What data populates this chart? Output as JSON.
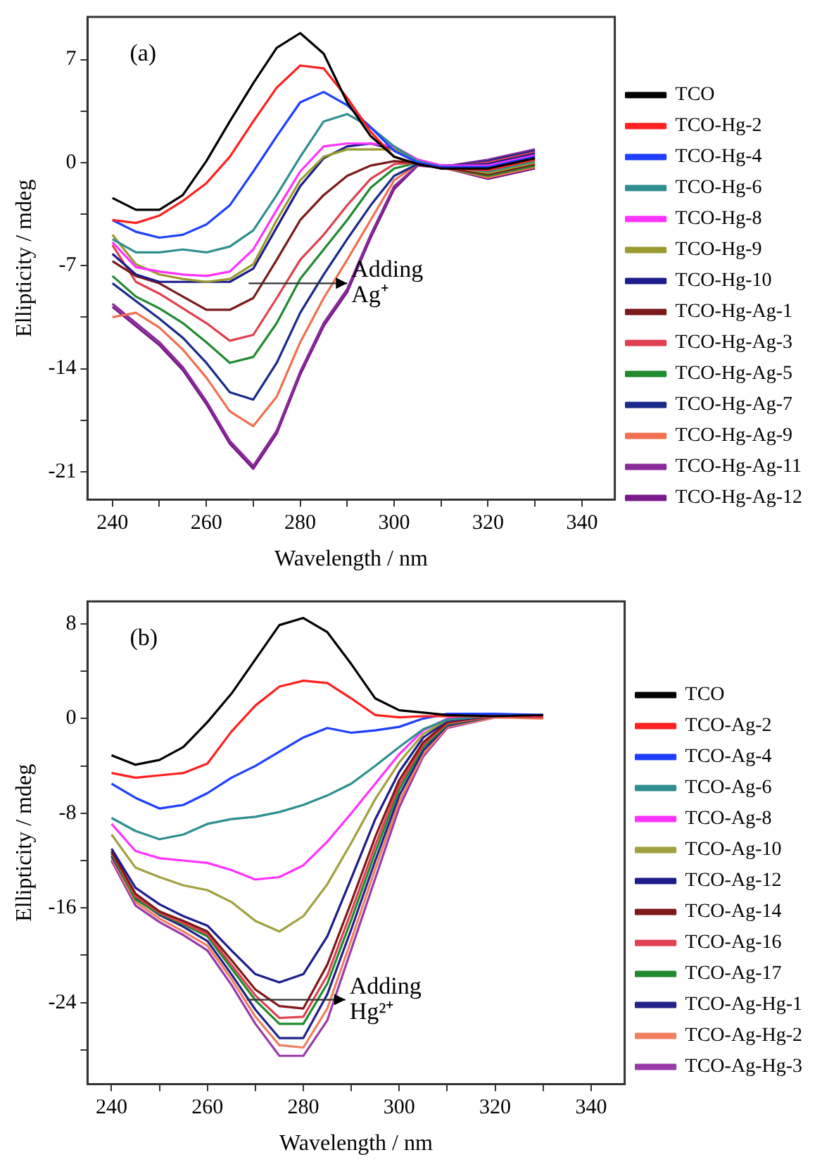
{
  "chart_data": [
    {
      "type": "line",
      "xlabel": "Wavelength / nm",
      "ylabel": "Ellipticity / mdeg",
      "annotations": [
        "(a)",
        {
          "text": "Adding Ag⁺",
          "x": 290,
          "y": -8.2
        }
      ],
      "x": [
        240,
        245,
        250,
        255,
        260,
        265,
        270,
        275,
        280,
        285,
        290,
        295,
        300,
        305,
        310,
        320,
        330
      ],
      "xlim": [
        234.7,
        347
      ],
      "xticks": [
        240,
        {
          "value": 250,
          "label": null
        },
        260,
        {
          "value": 270,
          "label": null
        },
        280,
        {
          "value": 290,
          "label": null
        },
        300,
        {
          "value": 310,
          "label": null
        },
        320,
        {
          "value": 330,
          "label": null
        },
        340
      ],
      "ylim": [
        -22.9,
        9.9
      ],
      "yticks": [
        -21,
        {
          "value": -17.5,
          "label": null
        },
        -14,
        {
          "value": -10.5,
          "label": null
        },
        -7,
        {
          "value": -3.5,
          "label": null
        },
        0,
        {
          "value": 3.5,
          "label": null
        },
        7
      ],
      "grid": false,
      "legend": "right",
      "marker": "none",
      "line_style": "solid",
      "series": [
        {
          "name": "TCO",
          "color": "#000000",
          "values": [
            -2.4,
            -3.2,
            -3.2,
            -2.2,
            0.1,
            2.8,
            5.4,
            7.8,
            8.8,
            7.4,
            4.1,
            1.8,
            0.4,
            -0.1,
            -0.4,
            -0.4,
            0.3
          ]
        },
        {
          "name": "TCO-Hg-2",
          "color": "#ff2020",
          "values": [
            -3.9,
            -4.1,
            -3.6,
            -2.6,
            -1.4,
            0.4,
            2.8,
            5.1,
            6.6,
            6.4,
            4.4,
            2.1,
            0.4,
            -0.1,
            -0.4,
            -0.5,
            0.2
          ]
        },
        {
          "name": "TCO-Hg-4",
          "color": "#1f3fff",
          "values": [
            -3.9,
            -4.7,
            -5.1,
            -4.9,
            -4.2,
            -2.9,
            -0.6,
            1.8,
            4.1,
            4.8,
            3.9,
            2.4,
            0.8,
            0.0,
            -0.3,
            -0.3,
            0.4
          ]
        },
        {
          "name": "TCO-Hg-6",
          "color": "#2f8f8f",
          "values": [
            -5.2,
            -6.1,
            -6.1,
            -5.9,
            -6.1,
            -5.7,
            -4.6,
            -2.2,
            0.4,
            2.8,
            3.3,
            2.4,
            1.1,
            0.1,
            -0.3,
            -0.6,
            0.1
          ]
        },
        {
          "name": "TCO-Hg-8",
          "color": "#ff33ff",
          "values": [
            -5.4,
            -7.1,
            -7.4,
            -7.6,
            -7.7,
            -7.4,
            -5.9,
            -3.2,
            -0.6,
            1.1,
            1.3,
            1.3,
            1.1,
            0.2,
            -0.2,
            -0.2,
            0.5
          ]
        },
        {
          "name": "TCO-Hg-9",
          "color": "#9a9a30",
          "values": [
            -4.9,
            -6.9,
            -7.6,
            -7.9,
            -8.1,
            -7.9,
            -6.9,
            -3.9,
            -1.2,
            0.4,
            0.9,
            0.9,
            0.9,
            0.2,
            -0.2,
            -0.7,
            0.0
          ]
        },
        {
          "name": "TCO-Hg-10",
          "color": "#1c1c8c",
          "values": [
            -6.2,
            -7.6,
            -8.1,
            -8.1,
            -8.1,
            -8.1,
            -7.2,
            -4.4,
            -1.6,
            0.3,
            1.1,
            1.3,
            0.9,
            0.2,
            -0.2,
            -0.1,
            0.6
          ]
        },
        {
          "name": "TCO-Hg-Ag-1",
          "color": "#7a1a1a",
          "values": [
            -6.7,
            -7.7,
            -8.2,
            -9.1,
            -10.0,
            -10.0,
            -9.2,
            -6.6,
            -3.9,
            -2.2,
            -0.9,
            -0.2,
            0.1,
            0.0,
            -0.3,
            -0.8,
            -0.1
          ]
        },
        {
          "name": "TCO-Hg-Ag-3",
          "color": "#e04050",
          "values": [
            -5.6,
            -8.1,
            -8.9,
            -9.9,
            -10.9,
            -12.1,
            -11.7,
            -9.2,
            -6.6,
            -4.9,
            -2.9,
            -1.1,
            -0.1,
            0.0,
            -0.3,
            0.0,
            0.7
          ]
        },
        {
          "name": "TCO-Hg-Ag-5",
          "color": "#208a30",
          "values": [
            -7.7,
            -9.1,
            -9.9,
            -10.9,
            -12.2,
            -13.6,
            -13.2,
            -10.9,
            -7.9,
            -5.9,
            -3.9,
            -1.7,
            -0.4,
            0.0,
            -0.3,
            -0.9,
            -0.2
          ]
        },
        {
          "name": "TCO-Hg-Ag-7",
          "color": "#1a2a8a",
          "values": [
            -8.2,
            -9.4,
            -10.6,
            -11.9,
            -13.6,
            -15.6,
            -16.1,
            -13.6,
            -10.2,
            -7.6,
            -5.2,
            -2.9,
            -0.9,
            -0.1,
            -0.3,
            0.1,
            0.8
          ]
        },
        {
          "name": "TCO-Hg-Ag-9",
          "color": "#f07050",
          "values": [
            -10.5,
            -10.2,
            -11.2,
            -12.7,
            -14.6,
            -16.9,
            -17.9,
            -15.9,
            -12.2,
            -9.2,
            -6.6,
            -3.9,
            -1.2,
            -0.1,
            -0.3,
            -1.0,
            -0.3
          ]
        },
        {
          "name": "TCO-Hg-Ag-11",
          "color": "#8a2a9a",
          "values": [
            -9.6,
            -10.9,
            -12.2,
            -13.9,
            -16.2,
            -18.9,
            -20.6,
            -18.2,
            -14.2,
            -10.9,
            -8.6,
            -4.9,
            -1.6,
            -0.2,
            -0.3,
            0.2,
            0.9
          ]
        },
        {
          "name": "TCO-Hg-Ag-12",
          "color": "#7a1a8a",
          "values": [
            -9.8,
            -11.1,
            -12.4,
            -14.1,
            -16.4,
            -19.1,
            -20.8,
            -18.4,
            -14.4,
            -11.1,
            -8.8,
            -5.1,
            -1.8,
            -0.2,
            -0.3,
            -1.1,
            -0.4
          ]
        }
      ]
    },
    {
      "type": "line",
      "xlabel": "Wavelength / nm",
      "ylabel": "Ellipticity / mdeg",
      "annotations": [
        "(b)",
        "Adding Hg²⁺"
      ],
      "x": [
        240,
        245,
        250,
        255,
        260,
        265,
        270,
        275,
        280,
        285,
        290,
        295,
        300,
        305,
        310,
        320,
        330
      ],
      "xlim": [
        235,
        347
      ],
      "xticks": [
        240,
        {
          "value": 250,
          "label": null
        },
        260,
        {
          "value": 270,
          "label": null
        },
        280,
        {
          "value": 290,
          "label": null
        },
        300,
        {
          "value": 310,
          "label": null
        },
        320,
        {
          "value": 330,
          "label": null
        },
        340
      ],
      "ylim": [
        -30.9,
        9.9
      ],
      "yticks": [
        {
          "value": -28,
          "label": null
        },
        -24,
        {
          "value": -20,
          "label": null
        },
        -16,
        {
          "value": -12,
          "label": null
        },
        -8,
        {
          "value": -4,
          "label": null
        },
        0,
        {
          "value": 4,
          "label": null
        },
        8
      ],
      "grid": false,
      "legend": "right",
      "marker": "none",
      "line_style": "solid",
      "series": [
        {
          "name": "TCO",
          "color": "#000000",
          "values": [
            -3.1,
            -3.9,
            -3.5,
            -2.4,
            -0.3,
            2.1,
            5.0,
            7.9,
            8.5,
            7.3,
            4.6,
            1.7,
            0.7,
            0.5,
            0.3,
            0.2,
            0.3
          ]
        },
        {
          "name": "TCO-Ag-2",
          "color": "#ff2020",
          "values": [
            -4.6,
            -5.0,
            -4.8,
            -4.6,
            -3.8,
            -1.1,
            1.1,
            2.7,
            3.2,
            3.0,
            1.7,
            0.3,
            0.1,
            0.2,
            0.2,
            0.2,
            0.2
          ]
        },
        {
          "name": "TCO-Ag-4",
          "color": "#1f3fff",
          "values": [
            -5.5,
            -6.7,
            -7.6,
            -7.3,
            -6.3,
            -5.0,
            -4.0,
            -2.8,
            -1.6,
            -0.8,
            -1.2,
            -1.0,
            -0.7,
            0.0,
            0.4,
            0.4,
            0.3
          ]
        },
        {
          "name": "TCO-Ag-6",
          "color": "#2f8f8f",
          "values": [
            -8.4,
            -9.5,
            -10.2,
            -9.8,
            -8.9,
            -8.5,
            -8.3,
            -7.9,
            -7.3,
            -6.5,
            -5.5,
            -4.0,
            -2.4,
            -0.9,
            -0.1,
            0.3,
            0.3
          ]
        },
        {
          "name": "TCO-Ag-8",
          "color": "#ff33ff",
          "values": [
            -8.9,
            -11.2,
            -11.8,
            -12.0,
            -12.2,
            -12.8,
            -13.6,
            -13.4,
            -12.4,
            -10.4,
            -8.0,
            -5.5,
            -3.0,
            -1.0,
            0.0,
            0.3,
            0.2
          ]
        },
        {
          "name": "TCO-Ag-10",
          "color": "#a0a040",
          "values": [
            -9.8,
            -12.6,
            -13.4,
            -14.1,
            -14.5,
            -15.5,
            -17.1,
            -18.0,
            -16.7,
            -14.0,
            -10.5,
            -6.8,
            -3.7,
            -1.3,
            -0.1,
            0.3,
            0.2
          ]
        },
        {
          "name": "TCO-Ag-12",
          "color": "#1c1c8c",
          "values": [
            -11.0,
            -14.3,
            -15.7,
            -16.7,
            -17.5,
            -19.6,
            -21.6,
            -22.3,
            -21.6,
            -18.4,
            -13.5,
            -8.5,
            -4.5,
            -1.6,
            -0.2,
            0.3,
            0.2
          ]
        },
        {
          "name": "TCO-Ag-14",
          "color": "#801818",
          "values": [
            -11.2,
            -14.8,
            -16.3,
            -17.1,
            -18.0,
            -20.4,
            -22.9,
            -24.3,
            -24.5,
            -20.8,
            -15.5,
            -10.0,
            -5.2,
            -2.0,
            -0.3,
            0.3,
            0.2
          ]
        },
        {
          "name": "TCO-Ag-16",
          "color": "#e04050",
          "values": [
            -11.3,
            -15.0,
            -16.4,
            -17.3,
            -18.2,
            -20.8,
            -23.4,
            -25.3,
            -25.2,
            -21.7,
            -16.3,
            -10.7,
            -5.6,
            -2.2,
            -0.4,
            0.2,
            0.1
          ]
        },
        {
          "name": "TCO-Ag-17",
          "color": "#208a30",
          "values": [
            -11.4,
            -15.3,
            -16.5,
            -17.4,
            -18.4,
            -21.1,
            -23.8,
            -25.8,
            -25.8,
            -22.4,
            -17.0,
            -11.3,
            -6.0,
            -2.4,
            -0.5,
            0.2,
            0.1
          ]
        },
        {
          "name": "TCO-Ag-Hg-1",
          "color": "#222288",
          "values": [
            -11.6,
            -15.2,
            -16.6,
            -17.6,
            -18.8,
            -21.6,
            -24.6,
            -27.0,
            -27.0,
            -23.3,
            -17.8,
            -12.0,
            -6.5,
            -2.7,
            -0.6,
            0.2,
            0.2
          ]
        },
        {
          "name": "TCO-Ag-Hg-2",
          "color": "#f08060",
          "values": [
            -11.8,
            -15.5,
            -16.9,
            -18.0,
            -19.2,
            -22.0,
            -25.2,
            -27.6,
            -27.8,
            -24.5,
            -18.7,
            -12.7,
            -7.0,
            -3.0,
            -0.7,
            0.1,
            0.0
          ]
        },
        {
          "name": "TCO-Ag-Hg-3",
          "color": "#9a3aaa",
          "values": [
            -12.0,
            -15.8,
            -17.2,
            -18.3,
            -19.6,
            -22.5,
            -25.8,
            -28.5,
            -28.5,
            -25.5,
            -19.5,
            -13.5,
            -7.5,
            -3.2,
            -0.8,
            0.1,
            0.1
          ]
        }
      ]
    }
  ]
}
